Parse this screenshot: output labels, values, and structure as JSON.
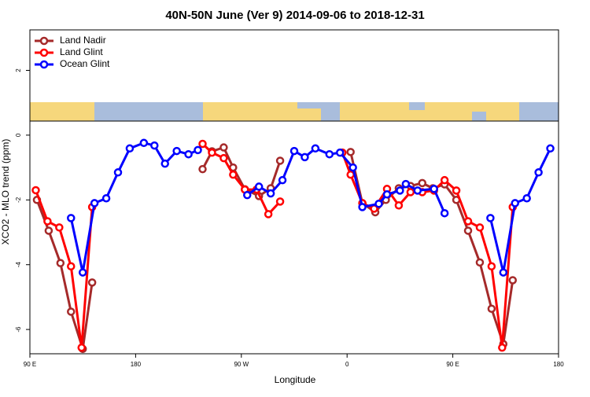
{
  "chart_data": {
    "type": "line",
    "title": "40N-50N June (Ver 9)   2014-09-06 to 2018-12-31",
    "xlabel": "Longitude",
    "ylabel": "XCO2 - MLO trend (ppm)",
    "xlim": [
      90,
      540
    ],
    "xticks": [
      {
        "value": 90,
        "label": "90 E"
      },
      180,
      {
        "value": 270,
        "label": "90 W"
      },
      {
        "value": 360,
        "label": "0"
      },
      {
        "value": 450,
        "label": "90 E"
      },
      {
        "value": 540,
        "label": "180"
      }
    ],
    "ylim": [
      -6.75,
      3.25
    ],
    "yticks": [
      -6,
      -4,
      -2,
      0,
      2
    ],
    "legend": "top-left",
    "series": [
      {
        "name": "Land Nadir",
        "color": "#a52a2a",
        "x": [
          96,
          106,
          116,
          125,
          135,
          143,
          null,
          237,
          245,
          255,
          263,
          273,
          285,
          295,
          303,
          null,
          363,
          373,
          384,
          393,
          404,
          414,
          424,
          433,
          443,
          453,
          463,
          473,
          483,
          493,
          501
        ],
        "values": [
          -2.0,
          -2.95,
          -3.95,
          -5.45,
          -6.6,
          -4.55,
          null,
          -1.05,
          -0.5,
          -0.38,
          -1.0,
          -1.67,
          -1.88,
          -1.64,
          -0.79,
          null,
          -0.52,
          -2.1,
          -2.38,
          -2.0,
          -1.64,
          -1.57,
          -1.48,
          -1.64,
          -1.52,
          -2.0,
          -2.95,
          -3.93,
          -5.36,
          -6.45,
          -4.48
        ]
      },
      {
        "name": "Land Glint",
        "color": "#ff0000",
        "x": [
          95,
          105,
          115,
          125,
          134,
          143,
          null,
          237,
          245,
          255,
          263,
          273,
          283,
          293,
          303,
          null,
          356,
          363,
          373,
          383,
          394,
          404,
          414,
          424,
          434,
          443,
          453,
          463,
          473,
          483,
          492,
          501
        ],
        "values": [
          -1.7,
          -2.66,
          -2.85,
          -4.05,
          -6.56,
          -2.22,
          null,
          -0.27,
          -0.54,
          -0.71,
          -1.22,
          -1.68,
          -1.68,
          -2.44,
          -2.05,
          null,
          -0.54,
          -1.22,
          -2.1,
          -2.27,
          -1.66,
          -2.17,
          -1.76,
          -1.76,
          -1.71,
          -1.39,
          -1.71,
          -2.66,
          -2.85,
          -4.05,
          -6.56,
          -2.22
        ]
      },
      {
        "name": "Ocean Glint",
        "color": "#0000ff",
        "x": [
          125,
          135,
          145,
          155,
          165,
          175,
          187,
          196,
          205,
          215,
          225,
          233,
          null,
          275,
          285,
          295,
          305,
          315,
          324,
          333,
          345,
          354,
          365,
          373,
          387,
          394,
          405,
          410,
          420,
          434,
          443,
          null,
          482,
          493,
          503,
          513,
          523,
          533
        ],
        "values": [
          -2.56,
          -4.24,
          -2.1,
          -1.95,
          -1.15,
          -0.41,
          -0.24,
          -0.32,
          -0.88,
          -0.49,
          -0.59,
          -0.46,
          null,
          -1.85,
          -1.59,
          -1.8,
          -1.39,
          -0.49,
          -0.68,
          -0.41,
          -0.59,
          -0.54,
          -1.0,
          -2.22,
          -2.12,
          -1.83,
          -1.71,
          -1.51,
          -1.71,
          -1.66,
          -2.41,
          null,
          -2.56,
          -4.24,
          -2.1,
          -1.95,
          -1.15,
          -0.41
        ]
      }
    ]
  }
}
